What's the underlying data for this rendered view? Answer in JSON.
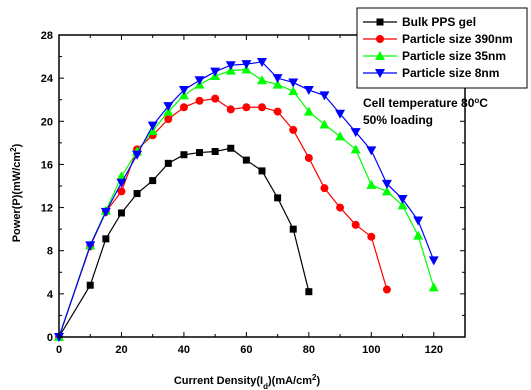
{
  "chart_data": {
    "type": "line",
    "xlabel": "Current Density(I",
    "xlabel_sub": "d",
    "xlabel_end": ")(mA/cm",
    "xlabel_sup": "2",
    "xlabel_close": ")",
    "ylabel": "Power(P)(mW/cm",
    "ylabel_sup": "2",
    "ylabel_close": ")",
    "xlim": [
      0,
      130
    ],
    "ylim": [
      0,
      28
    ],
    "xticks": [
      0,
      20,
      40,
      60,
      80,
      100,
      120
    ],
    "yticks": [
      0,
      4,
      8,
      12,
      16,
      20,
      24,
      28
    ],
    "legend_position": "top-right",
    "series": [
      {
        "name": "Bulk PPS gel",
        "color": "#000000",
        "marker": "square",
        "x": [
          0,
          10,
          15,
          20,
          25,
          30,
          35,
          40,
          45,
          50,
          55,
          60,
          65,
          70,
          75,
          80
        ],
        "y": [
          0,
          4.8,
          9.1,
          11.5,
          13.3,
          14.5,
          16.1,
          16.9,
          17.1,
          17.2,
          17.5,
          16.4,
          15.4,
          12.9,
          10.0,
          4.2
        ]
      },
      {
        "name": "Particle size 390nm",
        "color": "#ff0000",
        "marker": "circle",
        "x": [
          0,
          10,
          15,
          20,
          25,
          30,
          35,
          40,
          45,
          50,
          55,
          60,
          65,
          70,
          75,
          80,
          85,
          90,
          95,
          100,
          105
        ],
        "y": [
          0,
          8.4,
          11.6,
          13.5,
          17.4,
          18.7,
          20.2,
          21.3,
          21.9,
          22.1,
          21.1,
          21.3,
          21.3,
          20.9,
          19.2,
          16.6,
          13.8,
          12.0,
          10.4,
          9.3,
          4.4
        ]
      },
      {
        "name": "Particle size 35nm",
        "color": "#00ff00",
        "marker": "triangle-up",
        "x": [
          0,
          10,
          15,
          20,
          25,
          30,
          35,
          40,
          45,
          50,
          55,
          60,
          65,
          70,
          75,
          80,
          85,
          90,
          95,
          100,
          105,
          110,
          115,
          120
        ],
        "y": [
          0,
          8.5,
          11.7,
          14.9,
          17.2,
          19.1,
          20.9,
          22.4,
          23.4,
          24.2,
          24.7,
          24.8,
          23.8,
          23.4,
          22.8,
          20.9,
          19.7,
          18.6,
          17.4,
          14.1,
          13.5,
          12.2,
          9.4,
          4.6
        ]
      },
      {
        "name": "Particle size 8nm",
        "color": "#0000ff",
        "marker": "triangle-down",
        "x": [
          0,
          10,
          15,
          20,
          25,
          30,
          35,
          40,
          45,
          50,
          55,
          60,
          65,
          70,
          75,
          80,
          85,
          90,
          95,
          100,
          105,
          110,
          115,
          120
        ],
        "y": [
          0,
          8.5,
          11.6,
          14.3,
          16.9,
          19.6,
          21.4,
          22.9,
          23.8,
          24.6,
          25.2,
          25.3,
          25.5,
          24.0,
          23.6,
          22.9,
          22.4,
          20.7,
          19.0,
          17.3,
          14.2,
          12.8,
          10.8,
          7.1
        ]
      }
    ],
    "annotation_line1": "Cell temperature 80",
    "annotation_deg": "o",
    "annotation_c": "C",
    "annotation_line2": "50% loading"
  }
}
